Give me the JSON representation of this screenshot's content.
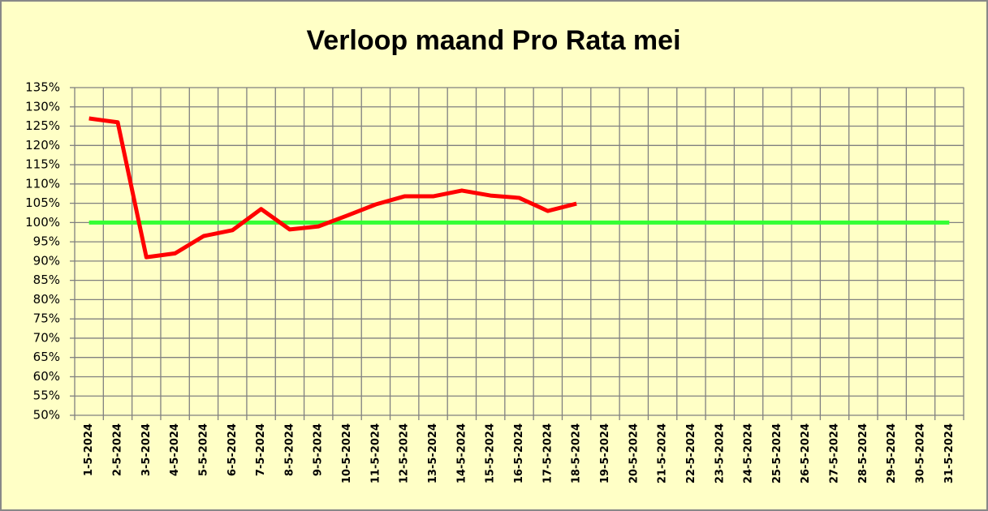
{
  "chart_data": {
    "type": "line",
    "title": "Verloop maand Pro Rata mei",
    "categories": [
      "1-5-2024",
      "2-5-2024",
      "3-5-2024",
      "4-5-2024",
      "5-5-2024",
      "6-5-2024",
      "7-5-2024",
      "8-5-2024",
      "9-5-2024",
      "10-5-2024",
      "11-5-2024",
      "12-5-2024",
      "13-5-2024",
      "14-5-2024",
      "15-5-2024",
      "16-5-2024",
      "17-5-2024",
      "18-5-2024",
      "19-5-2024",
      "20-5-2024",
      "21-5-2024",
      "22-5-2024",
      "23-5-2024",
      "24-5-2024",
      "25-5-2024",
      "26-5-2024",
      "27-5-2024",
      "28-5-2024",
      "29-5-2024",
      "30-5-2024",
      "31-5-2024"
    ],
    "series": [
      {
        "color": "#ff0000",
        "values": [
          127,
          126,
          91,
          92,
          96.5,
          98,
          103.5,
          98.2,
          99,
          101.8,
          104.7,
          106.8,
          106.8,
          108.3,
          107,
          106.4,
          103,
          104.9,
          null,
          null,
          null,
          null,
          null,
          null,
          null,
          null,
          null,
          null,
          null,
          null,
          null
        ]
      },
      {
        "color": "#33ff33",
        "values": [
          100,
          100,
          100,
          100,
          100,
          100,
          100,
          100,
          100,
          100,
          100,
          100,
          100,
          100,
          100,
          100,
          100,
          100,
          100,
          100,
          100,
          100,
          100,
          100,
          100,
          100,
          100,
          100,
          100,
          100,
          100
        ]
      }
    ],
    "ylim": [
      50,
      135
    ],
    "yticks": [
      {
        "value": 50,
        "label": "50%"
      },
      {
        "value": 55,
        "label": "55%"
      },
      {
        "value": 60,
        "label": "60%"
      },
      {
        "value": 65,
        "label": "65%"
      },
      {
        "value": 70,
        "label": "70%"
      },
      {
        "value": 75,
        "label": "75%"
      },
      {
        "value": 80,
        "label": "80%"
      },
      {
        "value": 85,
        "label": "85%"
      },
      {
        "value": 90,
        "label": "90%"
      },
      {
        "value": 95,
        "label": "95%"
      },
      {
        "value": 100,
        "label": "100%"
      },
      {
        "value": 105,
        "label": "105%"
      },
      {
        "value": 110,
        "label": "110%"
      },
      {
        "value": 115,
        "label": "115%"
      },
      {
        "value": 120,
        "label": "120%"
      },
      {
        "value": 125,
        "label": "125%"
      },
      {
        "value": 130,
        "label": "130%"
      },
      {
        "value": 135,
        "label": "135%"
      }
    ],
    "grid": true
  }
}
